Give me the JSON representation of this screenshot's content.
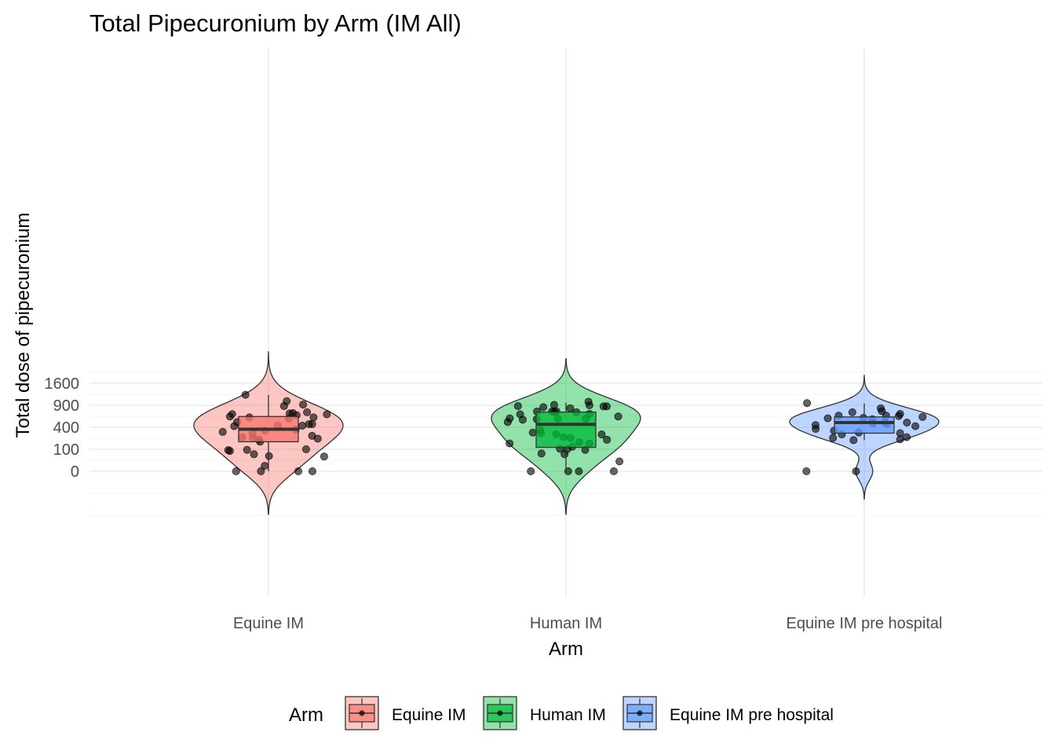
{
  "chart_data": {
    "type": "violin",
    "title": "Total Pipecuronium by Arm (IM All)",
    "xlabel": "Arm",
    "ylabel": "Total dose of pipecuronium",
    "y_scale": "sqrt",
    "yticks": [
      0,
      100,
      400,
      900,
      1600
    ],
    "categories": [
      "Equine IM",
      "Human IM",
      "Equine IM pre hospital"
    ],
    "legend": {
      "title": "Arm",
      "position": "bottom"
    },
    "grid": true,
    "series": [
      {
        "name": "Equine IM",
        "color": "#F8766D",
        "box": {
          "min": 0,
          "q1": 180,
          "median": 365,
          "q3": 620,
          "max": 1200
        },
        "points": [
          1016,
          1210,
          880,
          670,
          690,
          570,
          620,
          600,
          700,
          720,
          650,
          600,
          920,
          675,
          430,
          500,
          420,
          430,
          460,
          460,
          320,
          340,
          360,
          300,
          240,
          230,
          220,
          260,
          210,
          180,
          100,
          85,
          92,
          95,
          60,
          48,
          45,
          6,
          0,
          0,
          0,
          0
        ]
      },
      {
        "name": "Human IM",
        "color": "#00BA38",
        "box": {
          "min": 0,
          "q1": 118,
          "median": 455,
          "q3": 725,
          "max": 970
        },
        "points": [
          870,
          850,
          820,
          870,
          680,
          670,
          720,
          880,
          1000,
          910,
          900,
          740,
          740,
          730,
          745,
          620,
          570,
          580,
          560,
          550,
          570,
          500,
          300,
          350,
          285,
          310,
          280,
          240,
          230,
          205,
          175,
          160,
          160,
          125,
          105,
          100,
          95,
          65,
          60,
          20,
          0,
          0,
          0,
          0
        ]
      },
      {
        "name": "Equine IM pre hospital",
        "color": "#619CFF",
        "box": {
          "min": 200,
          "q1": 300,
          "median": 490,
          "q3": 610,
          "max": 950
        },
        "points": [
          960,
          820,
          750,
          720,
          680,
          640,
          640,
          630,
          610,
          590,
          580,
          560,
          500,
          490,
          470,
          460,
          440,
          420,
          370,
          340,
          310,
          300,
          280,
          240,
          230,
          210,
          200,
          0,
          0
        ]
      }
    ]
  }
}
